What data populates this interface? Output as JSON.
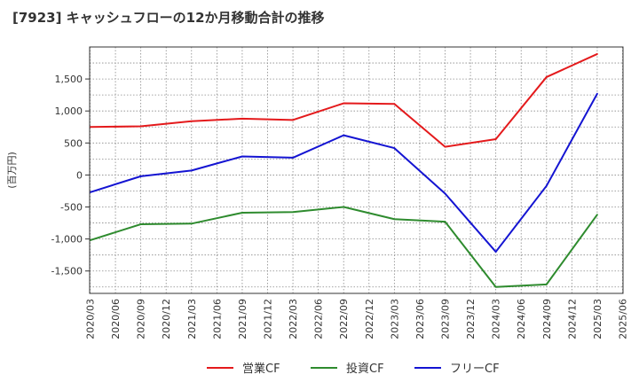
{
  "chart_data": {
    "type": "line",
    "title": "[7923]  キャッシュフローの12か月移動合計の推移",
    "ylabel": "(百万円)",
    "xlabel": "",
    "ylim": [
      -1850,
      2000
    ],
    "y_ticks": [
      1500,
      1000,
      500,
      0,
      -500,
      -1000,
      -1500
    ],
    "y_tick_labels": [
      "1,500",
      "1,000",
      "500",
      "0",
      "-500",
      "-1,000",
      "-1,500"
    ],
    "grid": true,
    "legend_position": "bottom",
    "categories": [
      "2020/03",
      "2020/06",
      "2020/09",
      "2020/12",
      "2021/03",
      "2021/06",
      "2021/09",
      "2021/12",
      "2022/03",
      "2022/06",
      "2022/09",
      "2022/12",
      "2023/03",
      "2023/06",
      "2023/09",
      "2023/12",
      "2024/03",
      "2024/06",
      "2024/09",
      "2024/12",
      "2025/03",
      "2025/06"
    ],
    "series": [
      {
        "name": "営業CF",
        "color": "#e41a1c",
        "points": [
          [
            "2020/03",
            750
          ],
          [
            "2020/09",
            760
          ],
          [
            "2021/03",
            840
          ],
          [
            "2021/09",
            880
          ],
          [
            "2022/03",
            860
          ],
          [
            "2022/09",
            1120
          ],
          [
            "2023/03",
            1110
          ],
          [
            "2023/09",
            440
          ],
          [
            "2024/03",
            560
          ],
          [
            "2024/09",
            1530
          ],
          [
            "2025/03",
            1890
          ]
        ]
      },
      {
        "name": "投資CF",
        "color": "#2e8b2e",
        "points": [
          [
            "2020/03",
            -1020
          ],
          [
            "2020/09",
            -770
          ],
          [
            "2021/03",
            -760
          ],
          [
            "2021/09",
            -590
          ],
          [
            "2022/03",
            -580
          ],
          [
            "2022/09",
            -500
          ],
          [
            "2023/03",
            -690
          ],
          [
            "2023/09",
            -730
          ],
          [
            "2024/03",
            -1750
          ],
          [
            "2024/09",
            -1710
          ],
          [
            "2025/03",
            -620
          ]
        ]
      },
      {
        "name": "フリーCF",
        "color": "#1414d2",
        "points": [
          [
            "2020/03",
            -270
          ],
          [
            "2020/09",
            -20
          ],
          [
            "2021/03",
            70
          ],
          [
            "2021/09",
            290
          ],
          [
            "2022/03",
            270
          ],
          [
            "2022/09",
            620
          ],
          [
            "2023/03",
            420
          ],
          [
            "2023/09",
            -290
          ],
          [
            "2024/03",
            -1200
          ],
          [
            "2024/09",
            -170
          ],
          [
            "2025/03",
            1270
          ]
        ]
      }
    ]
  }
}
